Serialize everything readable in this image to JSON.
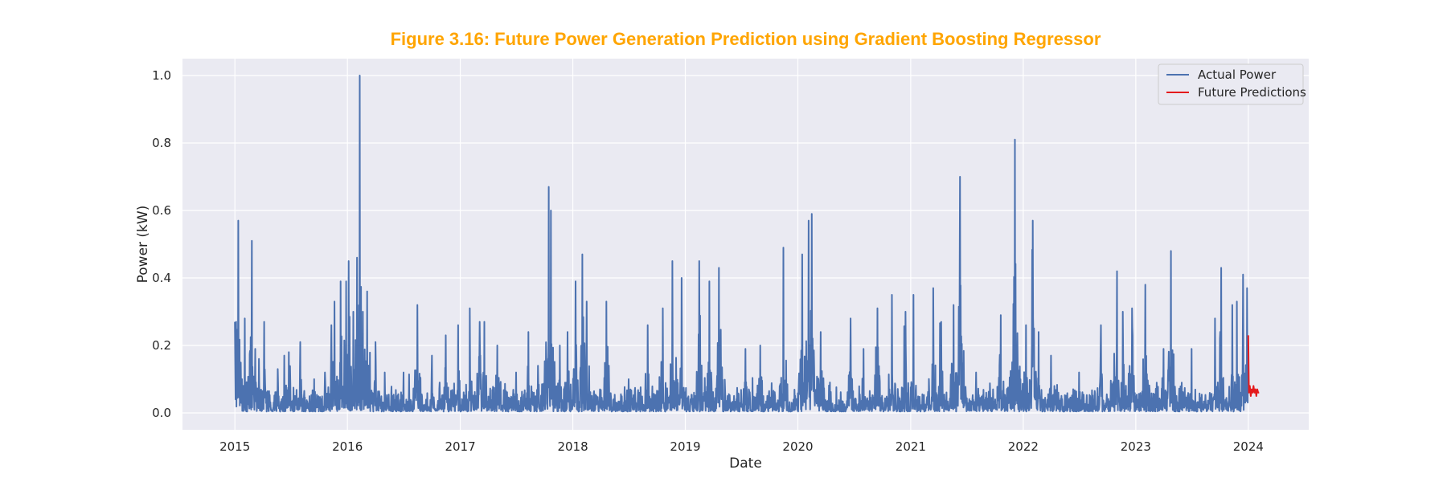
{
  "chart_data": {
    "type": "line",
    "title": "Figure 3.16: Future Power Generation Prediction using Gradient Boosting Regressor",
    "title_color": "#FFA500",
    "xlabel": "Date",
    "ylabel": "Power (kW)",
    "xlim": [
      "2014-07-15",
      "2024-07-15"
    ],
    "ylim": [
      -0.05,
      1.05
    ],
    "x_ticks": [
      "2015",
      "2016",
      "2017",
      "2018",
      "2019",
      "2020",
      "2021",
      "2022",
      "2023",
      "2024"
    ],
    "y_ticks": [
      "0.0",
      "0.2",
      "0.4",
      "0.6",
      "0.8",
      "1.0"
    ],
    "grid": true,
    "background": "#EAEAF2",
    "legend_position": "top-right",
    "series": [
      {
        "name": "Actual Power",
        "color": "#4C72B0",
        "baseline": {
          "low": 0.004,
          "high": 0.07
        },
        "peaks": [
          [
            "2015-01-01",
            0.27
          ],
          [
            "2015-01-05",
            0.27
          ],
          [
            "2015-01-12",
            0.57
          ],
          [
            "2015-02-02",
            0.28
          ],
          [
            "2015-02-25",
            0.51
          ],
          [
            "2015-03-08",
            0.19
          ],
          [
            "2015-03-20",
            0.16
          ],
          [
            "2015-04-06",
            0.27
          ],
          [
            "2015-05-20",
            0.13
          ],
          [
            "2015-06-10",
            0.17
          ],
          [
            "2015-06-25",
            0.18
          ],
          [
            "2015-08-01",
            0.21
          ],
          [
            "2015-09-15",
            0.1
          ],
          [
            "2015-10-20",
            0.12
          ],
          [
            "2015-11-10",
            0.26
          ],
          [
            "2015-11-20",
            0.33
          ],
          [
            "2015-12-10",
            0.39
          ],
          [
            "2015-12-28",
            0.39
          ],
          [
            "2016-01-05",
            0.45
          ],
          [
            "2016-01-20",
            0.3
          ],
          [
            "2016-02-01",
            0.46
          ],
          [
            "2016-02-10",
            1.0
          ],
          [
            "2016-02-20",
            0.3
          ],
          [
            "2016-03-05",
            0.36
          ],
          [
            "2016-04-01",
            0.21
          ],
          [
            "2016-05-01",
            0.12
          ],
          [
            "2016-07-01",
            0.12
          ],
          [
            "2016-08-15",
            0.32
          ],
          [
            "2016-10-01",
            0.17
          ],
          [
            "2016-11-15",
            0.23
          ],
          [
            "2016-12-25",
            0.26
          ],
          [
            "2017-02-01",
            0.31
          ],
          [
            "2017-03-05",
            0.27
          ],
          [
            "2017-03-20",
            0.27
          ],
          [
            "2017-05-01",
            0.2
          ],
          [
            "2017-07-01",
            0.12
          ],
          [
            "2017-08-10",
            0.24
          ],
          [
            "2017-09-10",
            0.14
          ],
          [
            "2017-10-15",
            0.67
          ],
          [
            "2017-10-22",
            0.6
          ],
          [
            "2017-11-20",
            0.2
          ],
          [
            "2017-12-15",
            0.24
          ],
          [
            "2018-01-10",
            0.39
          ],
          [
            "2018-02-01",
            0.47
          ],
          [
            "2018-02-15",
            0.33
          ],
          [
            "2018-04-20",
            0.33
          ],
          [
            "2018-07-01",
            0.1
          ],
          [
            "2018-09-01",
            0.26
          ],
          [
            "2018-10-20",
            0.31
          ],
          [
            "2018-11-20",
            0.45
          ],
          [
            "2018-12-20",
            0.4
          ],
          [
            "2019-02-15",
            0.45
          ],
          [
            "2019-03-20",
            0.39
          ],
          [
            "2019-04-20",
            0.43
          ],
          [
            "2019-07-15",
            0.19
          ],
          [
            "2019-09-01",
            0.2
          ],
          [
            "2019-11-15",
            0.49
          ],
          [
            "2020-01-15",
            0.47
          ],
          [
            "2020-02-05",
            0.57
          ],
          [
            "2020-02-15",
            0.59
          ],
          [
            "2020-03-15",
            0.24
          ],
          [
            "2020-06-20",
            0.28
          ],
          [
            "2020-08-01",
            0.19
          ],
          [
            "2020-09-15",
            0.31
          ],
          [
            "2020-11-01",
            0.35
          ],
          [
            "2020-12-15",
            0.3
          ],
          [
            "2021-01-10",
            0.35
          ],
          [
            "2021-03-15",
            0.37
          ],
          [
            "2021-04-10",
            0.27
          ],
          [
            "2021-05-20",
            0.32
          ],
          [
            "2021-06-10",
            0.7
          ],
          [
            "2021-08-01",
            0.12
          ],
          [
            "2021-10-20",
            0.29
          ],
          [
            "2021-12-05",
            0.81
          ],
          [
            "2022-01-10",
            0.26
          ],
          [
            "2022-02-01",
            0.57
          ],
          [
            "2022-02-20",
            0.24
          ],
          [
            "2022-04-01",
            0.17
          ],
          [
            "2022-07-01",
            0.12
          ],
          [
            "2022-09-10",
            0.26
          ],
          [
            "2022-11-01",
            0.42
          ],
          [
            "2022-11-20",
            0.3
          ],
          [
            "2022-12-20",
            0.31
          ],
          [
            "2023-02-01",
            0.38
          ],
          [
            "2023-04-01",
            0.19
          ],
          [
            "2023-04-25",
            0.48
          ],
          [
            "2023-07-01",
            0.19
          ],
          [
            "2023-09-15",
            0.28
          ],
          [
            "2023-10-05",
            0.43
          ],
          [
            "2023-11-10",
            0.32
          ],
          [
            "2023-11-25",
            0.33
          ],
          [
            "2023-12-15",
            0.41
          ],
          [
            "2023-12-28",
            0.37
          ]
        ]
      },
      {
        "name": "Future Predictions",
        "color": "#E41A1C",
        "points": [
          [
            "2024-01-01",
            0.23
          ],
          [
            "2024-01-03",
            0.06
          ],
          [
            "2024-01-06",
            0.08
          ],
          [
            "2024-01-09",
            0.05
          ],
          [
            "2024-01-12",
            0.07
          ],
          [
            "2024-01-15",
            0.06
          ],
          [
            "2024-01-18",
            0.08
          ],
          [
            "2024-01-21",
            0.06
          ],
          [
            "2024-01-24",
            0.07
          ],
          [
            "2024-01-27",
            0.05
          ],
          [
            "2024-01-30",
            0.07
          ],
          [
            "2024-02-02",
            0.06
          ],
          [
            "2024-02-05",
            0.06
          ]
        ]
      }
    ]
  }
}
